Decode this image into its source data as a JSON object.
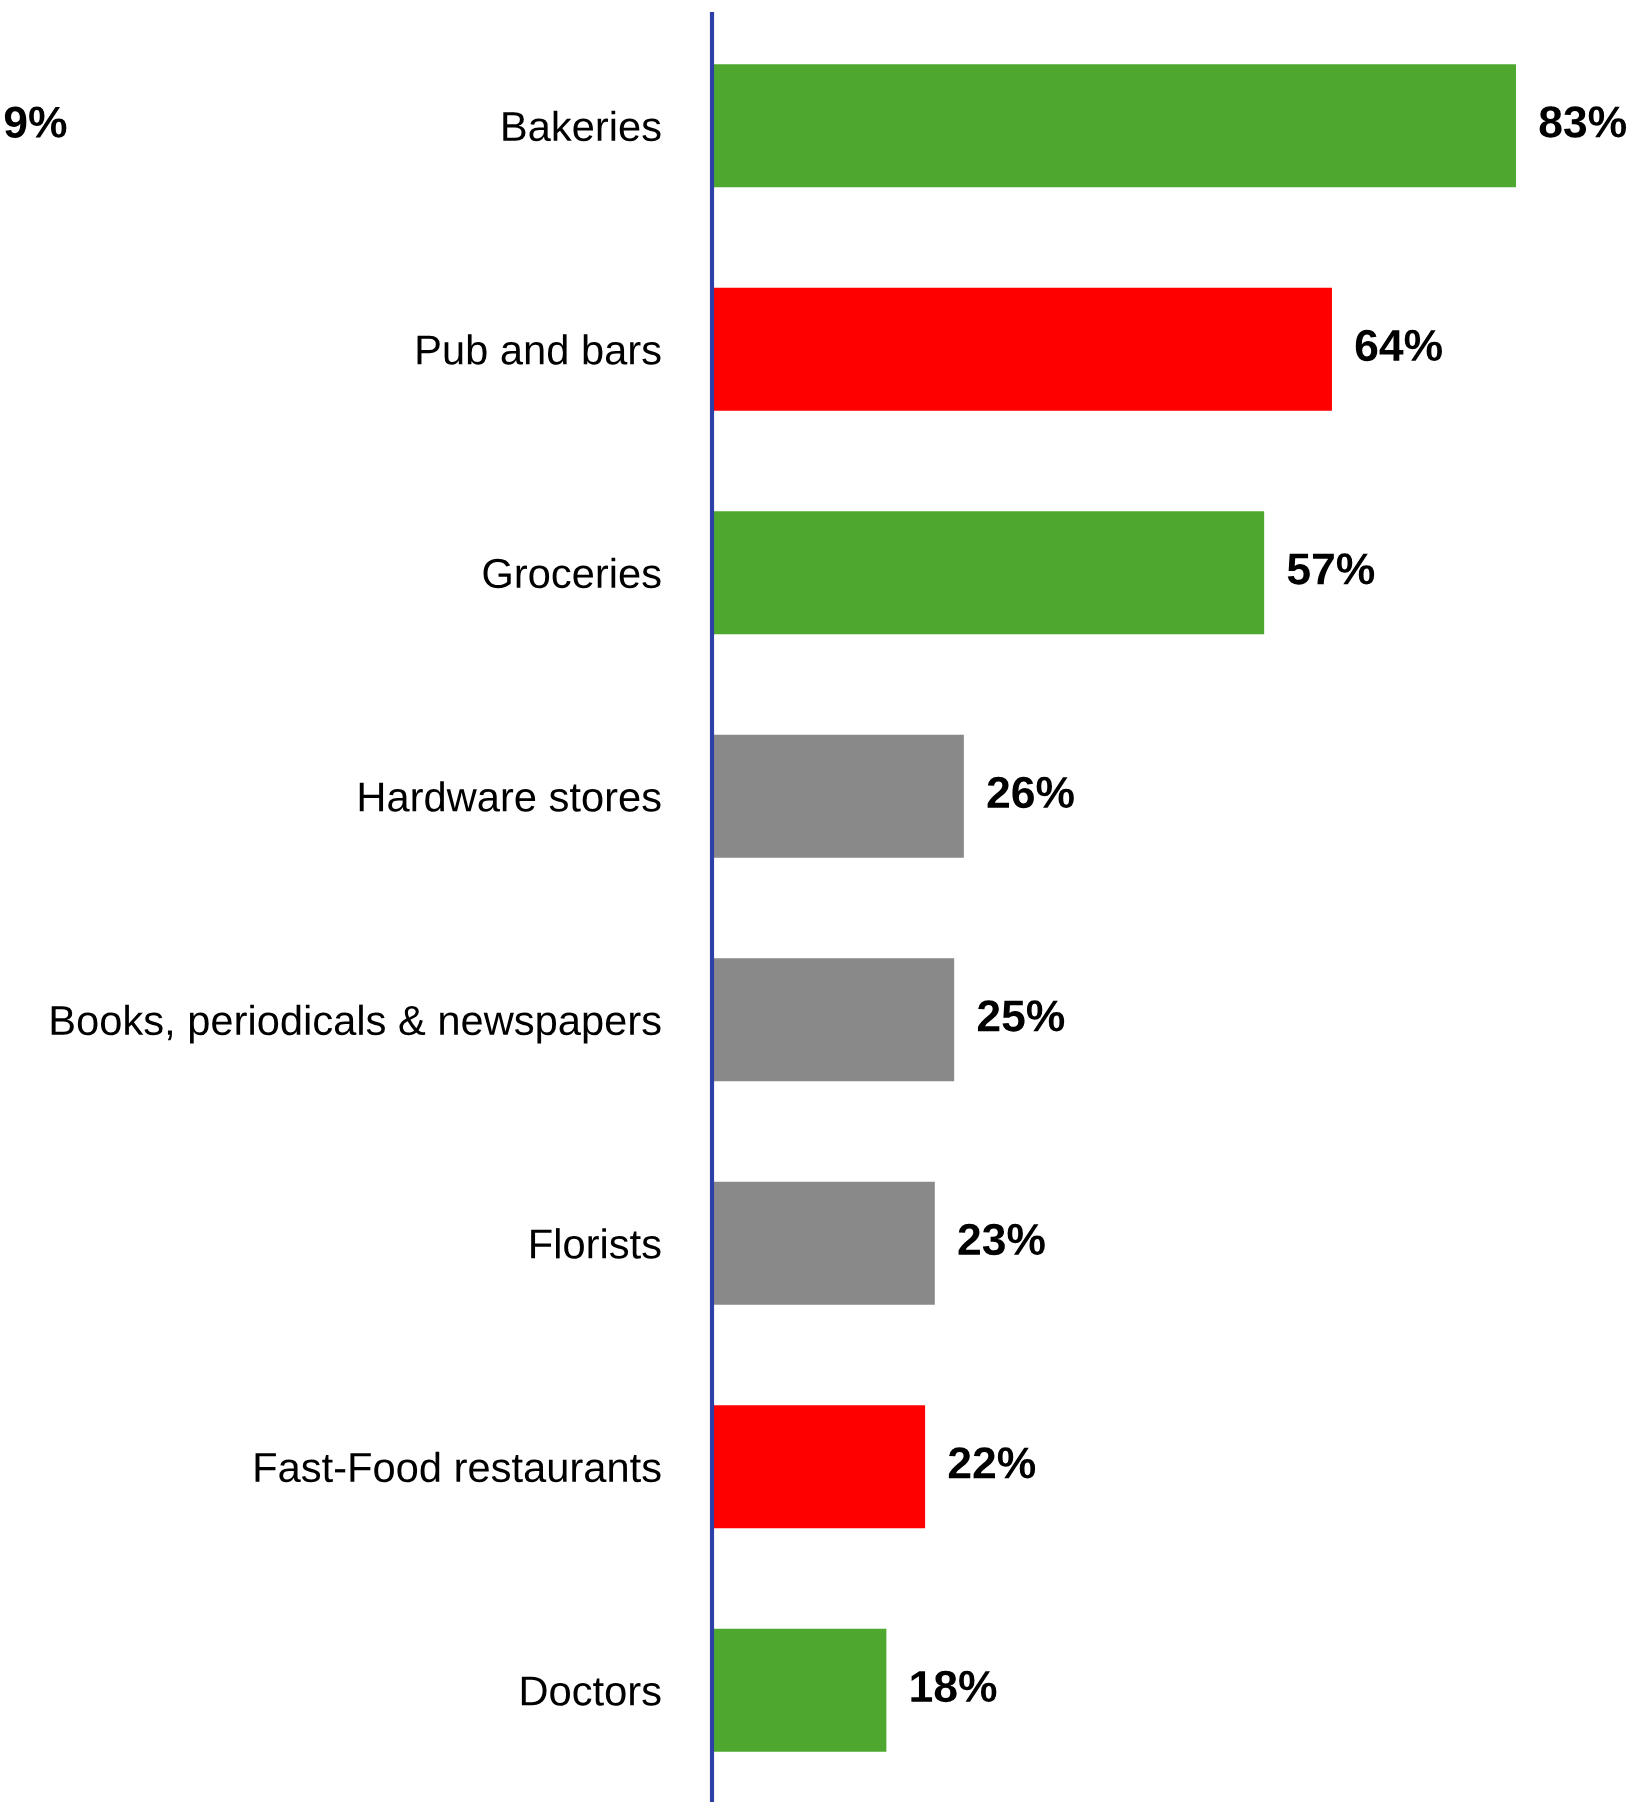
{
  "chart_data": {
    "type": "bar",
    "orientation": "horizontal",
    "categories": [
      "Bakeries",
      "Pub and bars",
      "Groceries",
      "Hardware stores",
      "Books, periodicals & newspapers",
      "Florists",
      "Fast-Food restaurants",
      "Doctors"
    ],
    "values": [
      83,
      64,
      57,
      26,
      25,
      23,
      22,
      18
    ],
    "value_labels": [
      "83%",
      "64%",
      "57%",
      "26%",
      "25%",
      "23%",
      "22%",
      "18%"
    ],
    "colors": [
      "#4ea72e",
      "#ff0000",
      "#4ea72e",
      "#898989",
      "#898989",
      "#898989",
      "#ff0000",
      "#4ea72e"
    ],
    "annotations": [
      "9%"
    ],
    "grid": false,
    "legend": false
  }
}
